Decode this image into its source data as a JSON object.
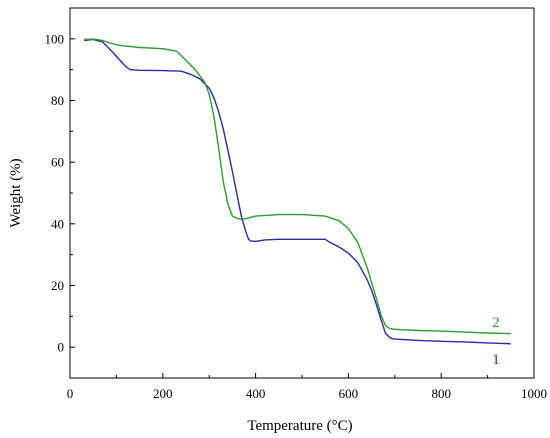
{
  "chart_data": {
    "type": "line",
    "xlabel": "Temperature (°C)",
    "ylabel": "Weight (%)",
    "xlim": [
      0,
      1000
    ],
    "ylim": [
      -10,
      110
    ],
    "xticks": [
      0,
      200,
      400,
      600,
      800,
      1000
    ],
    "yticks": [
      0,
      20,
      40,
      60,
      80,
      100
    ],
    "grid": false,
    "series": [
      {
        "name": "1",
        "color": "#2b2ba6",
        "x": [
          30,
          50,
          70,
          90,
          105,
          120,
          130,
          150,
          200,
          240,
          260,
          280,
          300,
          310,
          320,
          330,
          340,
          350,
          360,
          370,
          380,
          385,
          390,
          400,
          420,
          450,
          500,
          550,
          560,
          580,
          600,
          620,
          640,
          650,
          660,
          670,
          680,
          690,
          700,
          750,
          800,
          850,
          900,
          950
        ],
        "y": [
          99.5,
          99.8,
          99.0,
          96.0,
          93.5,
          91.0,
          90.0,
          89.8,
          89.7,
          89.5,
          88.5,
          87.0,
          84.0,
          81.0,
          76.5,
          71.0,
          64.0,
          57.0,
          49.5,
          42.0,
          37.0,
          35.0,
          34.4,
          34.3,
          34.8,
          35.0,
          35.0,
          35.0,
          34.0,
          32.5,
          30.5,
          27.5,
          22.0,
          18.5,
          14.0,
          9.0,
          4.5,
          3.0,
          2.6,
          2.2,
          1.9,
          1.7,
          1.4,
          1.1
        ]
      },
      {
        "name": "2",
        "color": "#2e9c2e",
        "x": [
          30,
          50,
          70,
          90,
          110,
          130,
          150,
          200,
          230,
          250,
          270,
          290,
          300,
          310,
          320,
          330,
          340,
          350,
          360,
          370,
          380,
          400,
          450,
          500,
          550,
          580,
          600,
          620,
          640,
          650,
          660,
          670,
          680,
          690,
          700,
          750,
          800,
          850,
          900,
          950
        ],
        "y": [
          99.8,
          99.9,
          99.5,
          98.5,
          97.8,
          97.5,
          97.2,
          96.8,
          96.0,
          93.0,
          90.0,
          86.0,
          82.0,
          75.0,
          65.0,
          54.0,
          46.5,
          42.5,
          41.8,
          41.5,
          41.7,
          42.5,
          43.0,
          43.0,
          42.5,
          41.0,
          38.5,
          34.0,
          26.0,
          21.0,
          16.0,
          10.5,
          7.0,
          6.0,
          5.8,
          5.4,
          5.2,
          4.9,
          4.6,
          4.4
        ]
      }
    ]
  }
}
